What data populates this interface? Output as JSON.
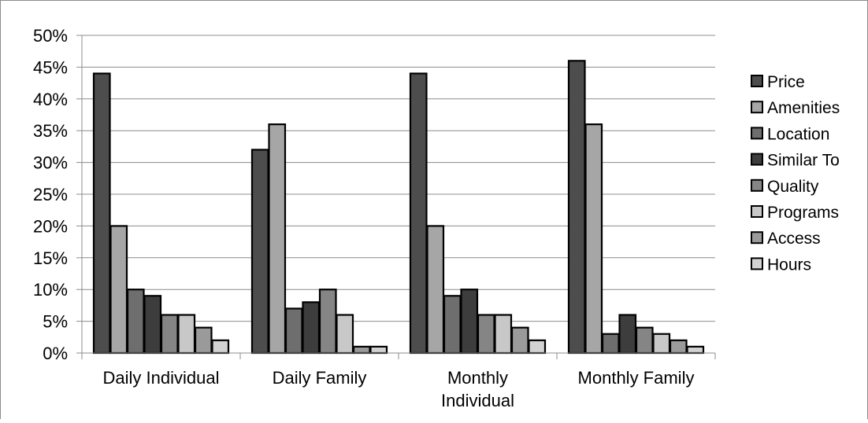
{
  "chart_data": {
    "type": "bar",
    "title": "",
    "xlabel": "",
    "ylabel": "",
    "ylim": [
      0,
      50
    ],
    "y_ticks": [
      "0%",
      "5%",
      "10%",
      "15%",
      "20%",
      "25%",
      "30%",
      "35%",
      "40%",
      "45%",
      "50%"
    ],
    "grid": true,
    "legend_position": "right",
    "categories": [
      [
        "Daily Individual"
      ],
      [
        "Daily Family"
      ],
      [
        "Monthly",
        "Individual"
      ],
      [
        "Monthly Family"
      ]
    ],
    "series": [
      {
        "name": "Price",
        "color": "#4d4d4d",
        "values": [
          44,
          32,
          44,
          46
        ]
      },
      {
        "name": "Amenities",
        "color": "#a6a6a6",
        "values": [
          20,
          36,
          20,
          36
        ]
      },
      {
        "name": "Location",
        "color": "#6e6e6e",
        "values": [
          10,
          7,
          9,
          3
        ]
      },
      {
        "name": "Similar To",
        "color": "#3d3d3d",
        "values": [
          9,
          8,
          10,
          6
        ]
      },
      {
        "name": "Quality",
        "color": "#858585",
        "values": [
          6,
          10,
          6,
          4
        ]
      },
      {
        "name": "Programs",
        "color": "#c8c8c8",
        "values": [
          6,
          6,
          6,
          3
        ]
      },
      {
        "name": "Access",
        "color": "#9a9a9a",
        "values": [
          4,
          1,
          4,
          2
        ]
      },
      {
        "name": "Hours",
        "color": "#d2d2d2",
        "values": [
          2,
          1,
          2,
          1
        ]
      }
    ]
  }
}
